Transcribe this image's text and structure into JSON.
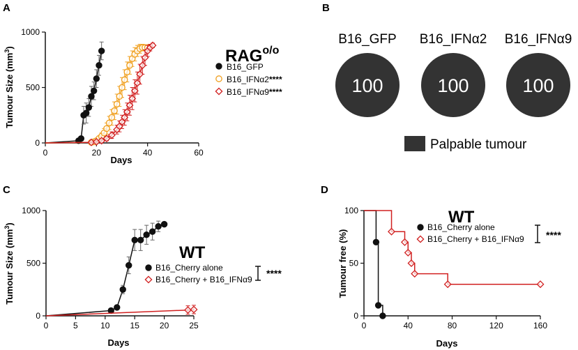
{
  "colors": {
    "black": "#111111",
    "orange": "#f0a020",
    "red": "#d12020",
    "circle": "#333333"
  },
  "panels": {
    "A": {
      "letter": "A",
      "title": "RAG",
      "title_sup": "o/o",
      "xlabel": "Days",
      "ylabel_main": "Tumour Size (mm",
      "ylabel_sup": "3",
      "ylabel_close": ")"
    },
    "B": {
      "letter": "B",
      "legend_label": "Palpable tumour"
    },
    "C": {
      "letter": "C",
      "title": "WT",
      "xlabel": "Days",
      "ylabel_main": "Tumour Size (mm",
      "ylabel_sup": "3",
      "ylabel_close": ")",
      "significance": "****"
    },
    "D": {
      "letter": "D",
      "title": "WT",
      "xlabel": "Days",
      "ylabel": "Tumour free (%)",
      "significance": "****"
    }
  },
  "chart_data": [
    {
      "panel": "A",
      "type": "line",
      "title": "RAGo/o",
      "xlabel": "Days",
      "ylabel": "Tumour Size (mm3)",
      "xlim": [
        0,
        60
      ],
      "ylim": [
        0,
        1000
      ],
      "xticks": [
        0,
        20,
        40,
        60
      ],
      "yticks": [
        0,
        500,
        1000
      ],
      "series": [
        {
          "name": "B16_GFP",
          "significance": "",
          "marker": "filled-circle",
          "color": "#111111",
          "x": [
            0,
            13,
            14,
            15,
            16,
            17,
            18,
            19,
            20,
            21,
            22
          ],
          "y": [
            0,
            20,
            40,
            250,
            270,
            320,
            420,
            470,
            580,
            700,
            830
          ],
          "err": [
            0,
            10,
            20,
            80,
            90,
            80,
            90,
            80,
            80,
            90,
            80
          ]
        },
        {
          "name": "B16_IFNα2",
          "significance": "****",
          "marker": "open-circle",
          "color": "#f0a020",
          "x": [
            0,
            18,
            19,
            20,
            21,
            22,
            23,
            24,
            25,
            26,
            27,
            28,
            29,
            30,
            31,
            32,
            33,
            34,
            35,
            36,
            37,
            38,
            39,
            40
          ],
          "y": [
            0,
            5,
            10,
            20,
            40,
            60,
            90,
            130,
            180,
            230,
            290,
            350,
            420,
            500,
            570,
            640,
            700,
            760,
            800,
            830,
            850,
            860,
            860,
            860
          ],
          "err": [
            0,
            5,
            10,
            15,
            20,
            30,
            40,
            50,
            60,
            70,
            80,
            90,
            90,
            90,
            90,
            90,
            80,
            70,
            60,
            50,
            40,
            30,
            20,
            20
          ]
        },
        {
          "name": "B16_IFNα9",
          "significance": "****",
          "marker": "open-diamond",
          "color": "#d12020",
          "x": [
            0,
            18,
            20,
            22,
            24,
            26,
            28,
            29,
            30,
            31,
            32,
            33,
            34,
            35,
            36,
            37,
            38,
            39,
            40,
            41,
            42
          ],
          "y": [
            0,
            5,
            10,
            20,
            40,
            70,
            120,
            150,
            190,
            230,
            280,
            340,
            400,
            470,
            540,
            620,
            700,
            770,
            830,
            860,
            880
          ],
          "err": [
            0,
            5,
            10,
            15,
            20,
            30,
            40,
            50,
            60,
            70,
            80,
            90,
            100,
            100,
            100,
            90,
            80,
            70,
            50,
            30,
            20
          ]
        }
      ]
    },
    {
      "panel": "B",
      "type": "table",
      "columns": [
        "B16_GFP",
        "B16_IFNα2",
        "B16_IFNα9"
      ],
      "values": [
        "100",
        "100",
        "100"
      ],
      "legend": "Palpable tumour"
    },
    {
      "panel": "C",
      "type": "line",
      "title": "WT",
      "xlabel": "Days",
      "ylabel": "Tumour Size (mm3)",
      "xlim": [
        0,
        25
      ],
      "ylim": [
        0,
        1000
      ],
      "xticks": [
        0,
        5,
        10,
        15,
        20,
        25
      ],
      "yticks": [
        0,
        500,
        1000
      ],
      "series": [
        {
          "name": "B16_Cherry alone",
          "marker": "filled-circle",
          "color": "#111111",
          "x": [
            0,
            11,
            12,
            13,
            14,
            15,
            16,
            17,
            18,
            19,
            20
          ],
          "y": [
            0,
            50,
            80,
            250,
            480,
            720,
            720,
            770,
            800,
            850,
            870
          ],
          "err": [
            0,
            10,
            20,
            40,
            80,
            100,
            100,
            90,
            80,
            50,
            20
          ]
        },
        {
          "name": "B16_Cherry + B16_IFNα9",
          "marker": "open-diamond",
          "color": "#d12020",
          "x": [
            0,
            24,
            25
          ],
          "y": [
            0,
            55,
            60
          ],
          "err": [
            0,
            40,
            40
          ]
        }
      ],
      "significance": "****"
    },
    {
      "panel": "D",
      "type": "line",
      "title": "WT",
      "xlabel": "Days",
      "ylabel": "Tumour free (%)",
      "xlim": [
        0,
        160
      ],
      "ylim": [
        0,
        100
      ],
      "xticks": [
        0,
        40,
        80,
        120,
        160
      ],
      "yticks": [
        0,
        50,
        100
      ],
      "series": [
        {
          "name": "B16_Cherry alone",
          "marker": "filled-circle",
          "color": "#111111",
          "step_x": [
            0,
            11,
            11,
            13,
            13,
            17,
            17
          ],
          "step_y": [
            100,
            100,
            70,
            70,
            10,
            10,
            0
          ],
          "points_x": [
            11,
            13,
            17
          ],
          "points_y": [
            70,
            10,
            0
          ]
        },
        {
          "name": "B16_Cherry + B16_IFNα9",
          "marker": "open-diamond",
          "color": "#d12020",
          "step_x": [
            0,
            25,
            25,
            37,
            37,
            40,
            40,
            43,
            43,
            46,
            46,
            76,
            76,
            160
          ],
          "step_y": [
            100,
            100,
            80,
            80,
            70,
            70,
            60,
            60,
            50,
            50,
            40,
            40,
            30,
            30
          ],
          "points_x": [
            25,
            37,
            40,
            43,
            46,
            76,
            160
          ],
          "points_y": [
            80,
            70,
            60,
            50,
            40,
            30,
            30
          ]
        }
      ],
      "significance": "****"
    }
  ]
}
